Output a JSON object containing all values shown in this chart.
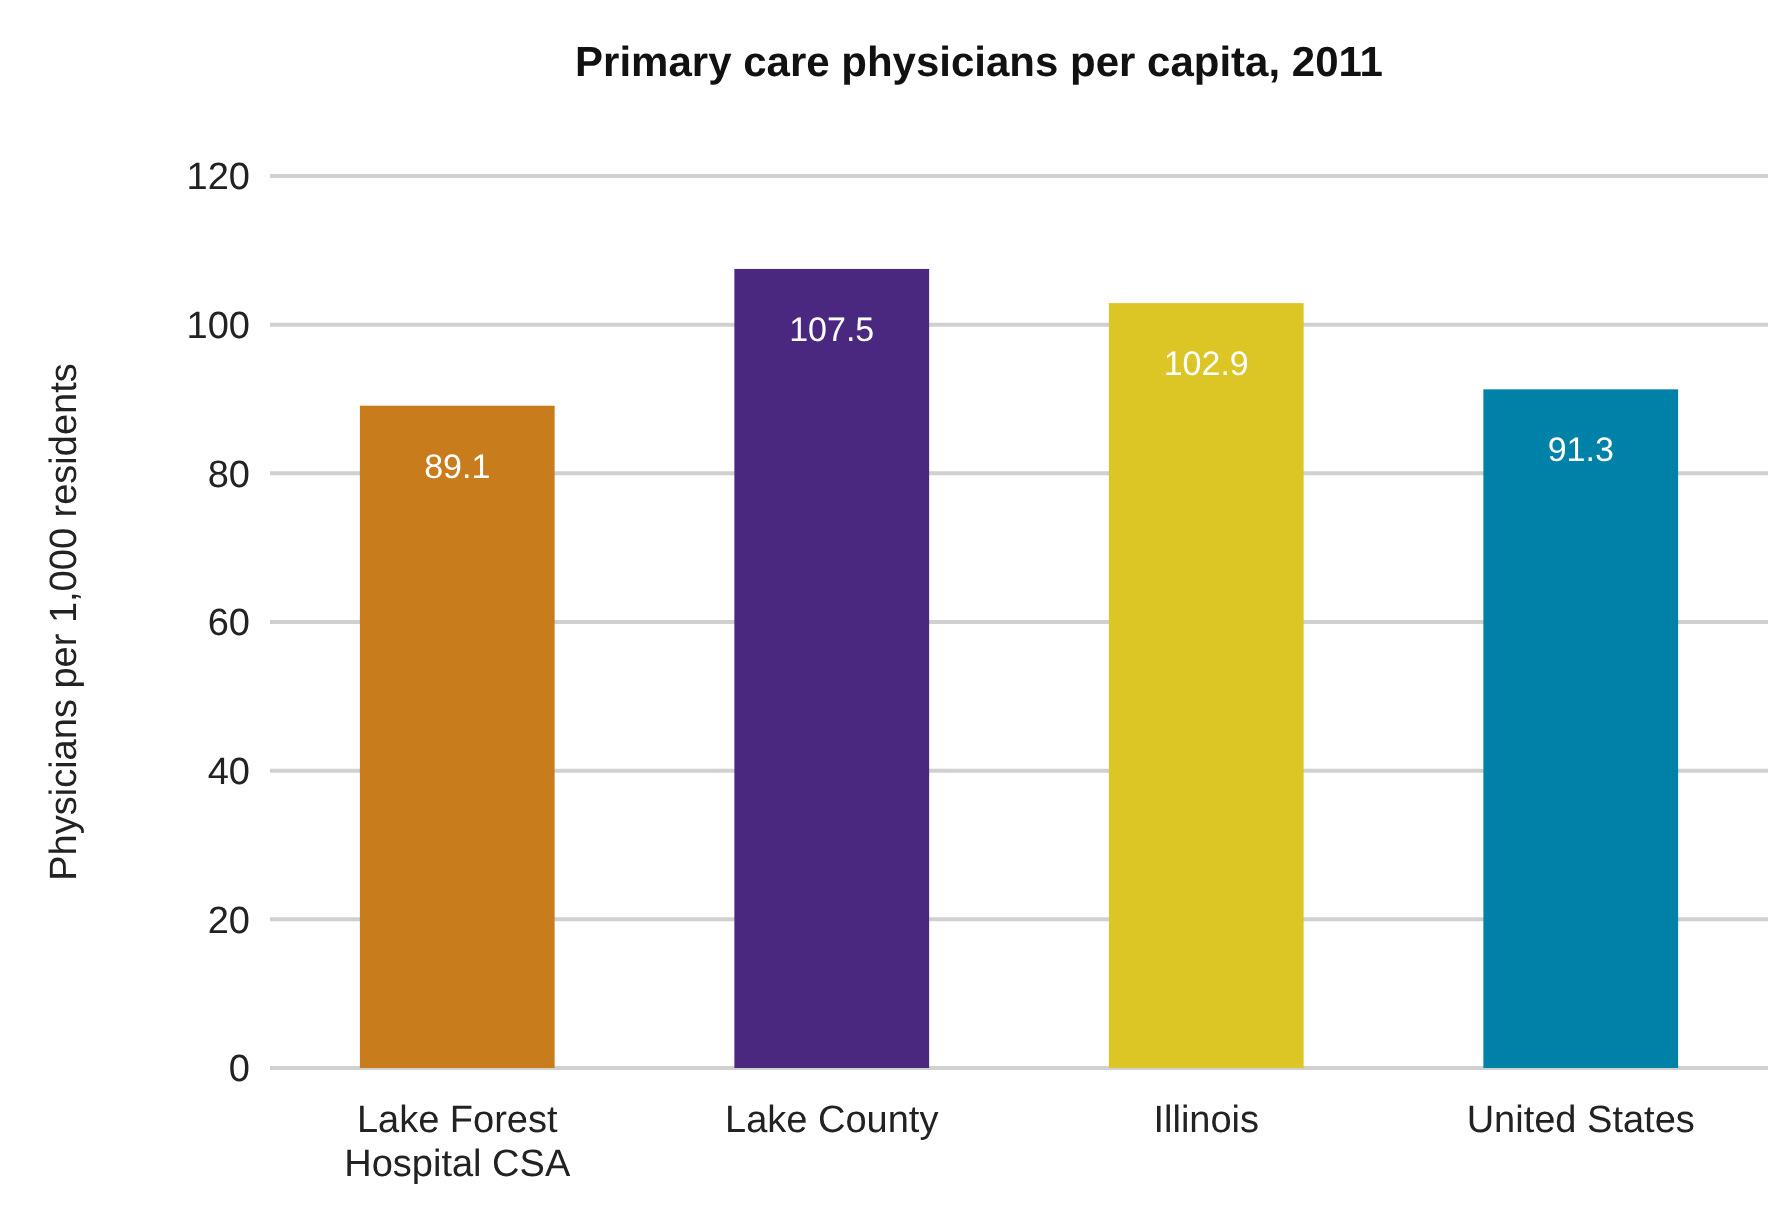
{
  "chart_data": {
    "type": "bar",
    "title": "Primary care physicians per capita, 2011",
    "ylabel": "Physicians per 1,000 residents",
    "categories": [
      "Lake Forest Hospital CSA",
      "Lake County",
      "Illinois",
      "United States"
    ],
    "values": [
      89.1,
      107.5,
      102.9,
      91.3
    ],
    "colors": [
      "#c97c1c",
      "#4a2880",
      "#dcc626",
      "#0081a8"
    ],
    "ylim": [
      0,
      120
    ],
    "yticks": [
      0,
      20,
      40,
      60,
      80,
      100,
      120
    ],
    "grid": "y",
    "data_labels": true
  }
}
